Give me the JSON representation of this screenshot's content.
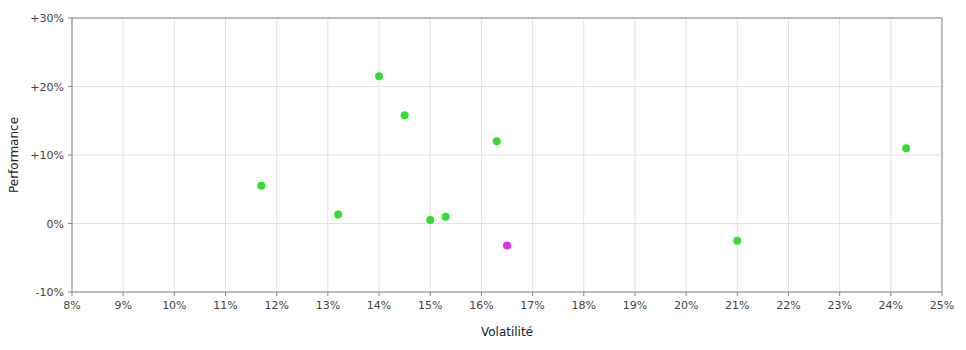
{
  "chart_data": {
    "type": "scatter",
    "xlabel": "Volatilité",
    "ylabel": "Performance",
    "xlim": [
      0.08,
      0.25
    ],
    "ylim": [
      -0.1,
      0.3
    ],
    "xticks": [
      {
        "value": 0.08,
        "label": "8%"
      },
      {
        "value": 0.09,
        "label": "9%"
      },
      {
        "value": 0.1,
        "label": "10%"
      },
      {
        "value": 0.11,
        "label": "11%"
      },
      {
        "value": 0.12,
        "label": "12%"
      },
      {
        "value": 0.13,
        "label": "13%"
      },
      {
        "value": 0.14,
        "label": "14%"
      },
      {
        "value": 0.15,
        "label": "15%"
      },
      {
        "value": 0.16,
        "label": "16%"
      },
      {
        "value": 0.17,
        "label": "17%"
      },
      {
        "value": 0.18,
        "label": "18%"
      },
      {
        "value": 0.19,
        "label": "19%"
      },
      {
        "value": 0.2,
        "label": "20%"
      },
      {
        "value": 0.21,
        "label": "21%"
      },
      {
        "value": 0.22,
        "label": "22%"
      },
      {
        "value": 0.23,
        "label": "23%"
      },
      {
        "value": 0.24,
        "label": "24%"
      },
      {
        "value": 0.25,
        "label": "25%"
      }
    ],
    "yticks": [
      {
        "value": -0.1,
        "label": "-10%"
      },
      {
        "value": 0.0,
        "label": "0%"
      },
      {
        "value": 0.1,
        "label": "+10%"
      },
      {
        "value": 0.2,
        "label": "+20%"
      },
      {
        "value": 0.3,
        "label": "+30%"
      }
    ],
    "grid": true,
    "series": [
      {
        "color": "#33dd33",
        "x": [
          0.117,
          0.132,
          0.14,
          0.145,
          0.15,
          0.153,
          0.163,
          0.21,
          0.243
        ],
        "values": [
          0.055,
          0.013,
          0.215,
          0.158,
          0.005,
          0.01,
          0.12,
          -0.025,
          0.11
        ]
      },
      {
        "color": "#dd33dd",
        "x": [
          0.165
        ],
        "values": [
          -0.032
        ]
      }
    ]
  }
}
